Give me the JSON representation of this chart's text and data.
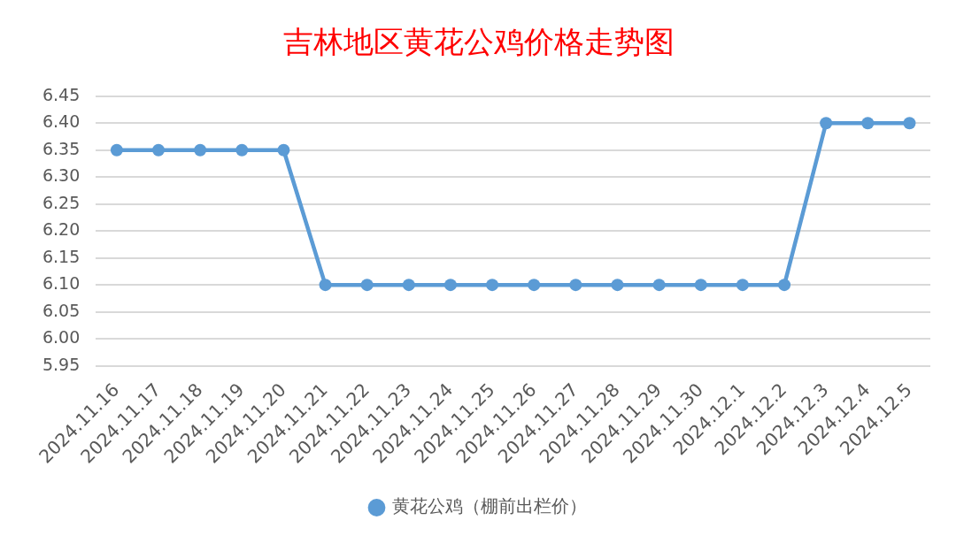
{
  "chart_data": {
    "type": "line",
    "title": "吉林地区黄花公鸡价格走势图",
    "categories": [
      "2024.11.16",
      "2024.11.17",
      "2024.11.18",
      "2024.11.19",
      "2024.11.20",
      "2024.11.21",
      "2024.11.22",
      "2024.11.23",
      "2024.11.24",
      "2024.11.25",
      "2024.11.26",
      "2024.11.27",
      "2024.11.28",
      "2024.11.29",
      "2024.11.30",
      "2024.12.1",
      "2024.12.2",
      "2024.12.3",
      "2024.12.4",
      "2024.12.5"
    ],
    "series": [
      {
        "name": "黄花公鸡（棚前出栏价）",
        "color": "#5b9bd5",
        "values": [
          6.35,
          6.35,
          6.35,
          6.35,
          6.35,
          6.1,
          6.1,
          6.1,
          6.1,
          6.1,
          6.1,
          6.1,
          6.1,
          6.1,
          6.1,
          6.1,
          6.1,
          6.4,
          6.4,
          6.4
        ]
      }
    ],
    "ylim": [
      5.95,
      6.45
    ],
    "yticks": [
      {
        "value": 5.95,
        "label": "5.95"
      },
      {
        "value": 6.0,
        "label": "6.00"
      },
      {
        "value": 6.05,
        "label": "6.05"
      },
      {
        "value": 6.1,
        "label": "6.10"
      },
      {
        "value": 6.15,
        "label": "6.15"
      },
      {
        "value": 6.2,
        "label": "6.20"
      },
      {
        "value": 6.25,
        "label": "6.25"
      },
      {
        "value": 6.3,
        "label": "6.30"
      },
      {
        "value": 6.35,
        "label": "6.35"
      },
      {
        "value": 6.4,
        "label": "6.40"
      },
      {
        "value": 6.45,
        "label": "6.45"
      }
    ],
    "grid": "y",
    "legend": "bottom",
    "marker": "circle",
    "line_style": "solid"
  }
}
